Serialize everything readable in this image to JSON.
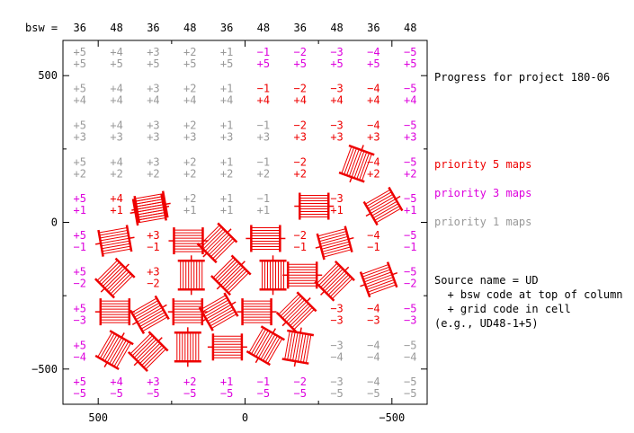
{
  "chart_data": {
    "type": "scatter",
    "title": "",
    "xlabel": "",
    "ylabel": "",
    "xlim": [
      620,
      -620
    ],
    "ylim": [
      -620,
      620
    ],
    "x_ticks": [
      500,
      0,
      -500
    ],
    "y_ticks": [
      500,
      0,
      -500
    ],
    "x_tick_labels": [
      "500",
      "0",
      "−500"
    ],
    "y_tick_labels": [
      "500",
      "0",
      "−500"
    ],
    "bsw_label": "bsw =",
    "bsw_codes": [
      "36",
      "48",
      "36",
      "48",
      "36",
      "48",
      "36",
      "48",
      "36",
      "48"
    ],
    "column_codes": [
      "+5",
      "+4",
      "+3",
      "+2",
      "+1",
      "−1",
      "−2",
      "−3",
      "−4",
      "−5"
    ],
    "row_codes": [
      "+5",
      "+4",
      "+3",
      "+2",
      "+1",
      "−1",
      "−2",
      "−3",
      "−4",
      "−5"
    ],
    "grid_spacing": 125,
    "priority_colors": {
      "1": "#999999",
      "3": "#dd00dd",
      "5": "#ee0000"
    },
    "priority_grid": [
      [
        1,
        1,
        1,
        1,
        1,
        3,
        3,
        3,
        3,
        3
      ],
      [
        1,
        1,
        1,
        1,
        1,
        5,
        5,
        5,
        5,
        3
      ],
      [
        1,
        1,
        1,
        1,
        1,
        1,
        5,
        5,
        5,
        3
      ],
      [
        1,
        1,
        1,
        1,
        1,
        1,
        5,
        0,
        5,
        3
      ],
      [
        3,
        5,
        0,
        1,
        1,
        1,
        0,
        5,
        0,
        3
      ],
      [
        3,
        0,
        5,
        0,
        0,
        0,
        5,
        0,
        5,
        3
      ],
      [
        3,
        0,
        5,
        0,
        0,
        0,
        0,
        0,
        0,
        3
      ],
      [
        3,
        0,
        0,
        0,
        0,
        0,
        0,
        5,
        5,
        3
      ],
      [
        3,
        0,
        0,
        0,
        0,
        0,
        0,
        1,
        1,
        1
      ],
      [
        3,
        3,
        3,
        3,
        3,
        3,
        3,
        1,
        1,
        1
      ]
    ],
    "maps": [
      {
        "x": 443,
        "y": -63,
        "angle": 10
      },
      {
        "x": 325,
        "y": 43,
        "angle": 10
      },
      {
        "x": 193,
        "y": -63,
        "angle": 0
      },
      {
        "x": 95,
        "y": -70,
        "angle": 45
      },
      {
        "x": -70,
        "y": -55,
        "angle": 0
      },
      {
        "x": -305,
        "y": -70,
        "angle": 15
      },
      {
        "x": 443,
        "y": -190,
        "angle": 45
      },
      {
        "x": 183,
        "y": -180,
        "angle": 90
      },
      {
        "x": 48,
        "y": -180,
        "angle": 45
      },
      {
        "x": -95,
        "y": -180,
        "angle": 90
      },
      {
        "x": -195,
        "y": -180,
        "angle": 0
      },
      {
        "x": -305,
        "y": -200,
        "angle": 45
      },
      {
        "x": -455,
        "y": -195,
        "angle": 20
      },
      {
        "x": 443,
        "y": -305,
        "angle": 0
      },
      {
        "x": 325,
        "y": -315,
        "angle": 30
      },
      {
        "x": 195,
        "y": -305,
        "angle": 0
      },
      {
        "x": 90,
        "y": -305,
        "angle": 30
      },
      {
        "x": -40,
        "y": -305,
        "angle": 0
      },
      {
        "x": -175,
        "y": -305,
        "angle": 45
      },
      {
        "x": 445,
        "y": -435,
        "angle": 60
      },
      {
        "x": 330,
        "y": -440,
        "angle": 45
      },
      {
        "x": 195,
        "y": -425,
        "angle": 90
      },
      {
        "x": 60,
        "y": -425,
        "angle": 0
      },
      {
        "x": -70,
        "y": -420,
        "angle": 60
      },
      {
        "x": -180,
        "y": -425,
        "angle": 80
      },
      {
        "x": 320,
        "y": 53,
        "angle": 10
      },
      {
        "x": -380,
        "y": 200,
        "angle": 70
      },
      {
        "x": -470,
        "y": 55,
        "angle": 30
      },
      {
        "x": -235,
        "y": 55,
        "angle": 0
      }
    ],
    "right_labels": {
      "progress": "Progress for project 180-06",
      "p5": "priority 5 maps",
      "p3": "priority 3 maps",
      "p1": "priority 1 maps",
      "source1": "Source name = UD",
      "source2": "  + bsw code at top of column",
      "source3": "  + grid code in cell",
      "source4": "(e.g., UD48-1+5)"
    }
  }
}
